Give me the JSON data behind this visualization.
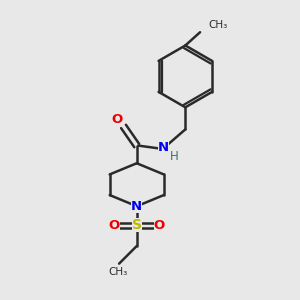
{
  "bg_color": "#e8e8e8",
  "bond_color": "#2a2a2a",
  "bond_width": 1.8,
  "N_color": "#0000ee",
  "O_color": "#ee0000",
  "S_color": "#bbbb00",
  "H_color": "#407070",
  "fig_size": [
    3.0,
    3.0
  ],
  "dpi": 100,
  "xlim": [
    0,
    10
  ],
  "ylim": [
    0,
    10
  ]
}
